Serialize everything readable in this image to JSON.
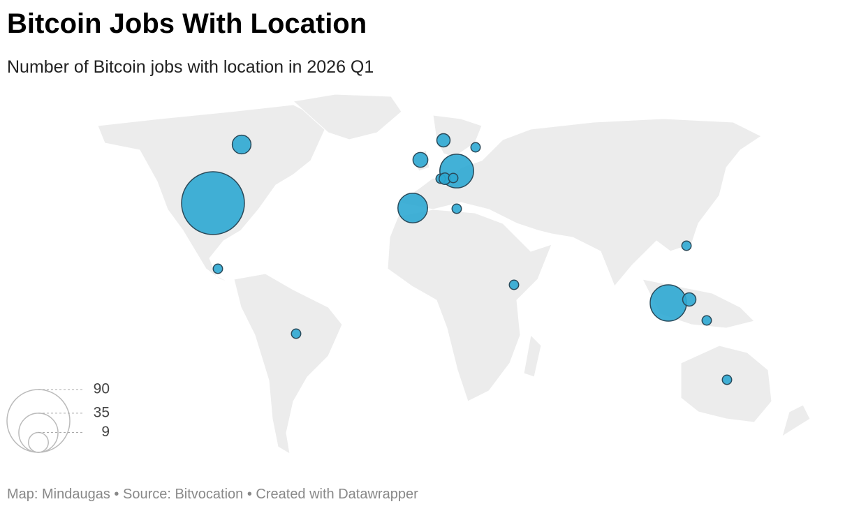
{
  "title": "Bitcoin Jobs With Location",
  "subtitle": "Number of Bitcoin jobs with location in 2026 Q1",
  "footer": "Map: Mindaugas • Source: Bitvocation • Created with Datawrapper",
  "bubbles": {
    "color": "#2ea8d3",
    "values": [
      90,
      8,
      2,
      2,
      20,
      5,
      4,
      2,
      26,
      2,
      3,
      2,
      2,
      2,
      2,
      30,
      4,
      2,
      2
    ]
  },
  "legend": {
    "values": [
      90,
      35,
      9
    ]
  }
}
